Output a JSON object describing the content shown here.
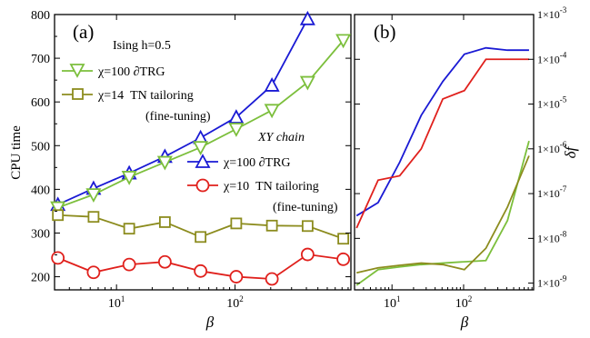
{
  "chart_data": [
    {
      "panel": "(a)",
      "type": "line",
      "xlabel": "β",
      "ylabel": "CPU time",
      "xscale": "log",
      "xlim": [
        3,
        950
      ],
      "ylim": [
        170,
        800
      ],
      "x_ticks": [
        {
          "v": 10,
          "label": "10",
          "sup": "1"
        },
        {
          "v": 100,
          "label": "10",
          "sup": "2"
        },
        {
          "v": 1000,
          "label": "10",
          "sup": "3"
        }
      ],
      "y_ticks": [
        "200",
        "300",
        "400",
        "500",
        "600",
        "700",
        "800"
      ],
      "legend_groups": [
        {
          "title": "Ising h=0.5",
          "entries": [
            "χ=100 ∂TRG",
            "χ=14  TN tailoring",
            "(fine-tuning)"
          ]
        },
        {
          "title": "XY chain",
          "entries": [
            "χ=100 ∂TRG",
            "χ=10  TN tailoring",
            "(fine-tuning)"
          ]
        }
      ],
      "series": [
        {
          "name": "χ=100 ∂TRG (XY chain)",
          "color": "#1a1ad4",
          "marker": "triangle-up",
          "x": [
            3.2,
            6.4,
            12.8,
            25.6,
            51.2,
            102.4,
            204.8,
            409.6,
            819.2
          ],
          "y": [
            365,
            402,
            437,
            475,
            518,
            565,
            638,
            790,
            null
          ]
        },
        {
          "name": "χ=100 ∂TRG (Ising h=0.5)",
          "color": "#7cbf3c",
          "marker": "triangle-down",
          "x": [
            3.2,
            6.4,
            12.8,
            25.6,
            51.2,
            102.4,
            204.8,
            409.6,
            819.2
          ],
          "y": [
            358,
            388,
            428,
            462,
            496,
            538,
            581,
            645,
            741
          ]
        },
        {
          "name": "χ=14 TN tailoring (fine-tuning)",
          "color": "#8c8c1e",
          "marker": "square",
          "x": [
            3.2,
            6.4,
            12.8,
            25.6,
            51.2,
            102.4,
            204.8,
            409.6,
            819.2
          ],
          "y": [
            341,
            337,
            310,
            325,
            291,
            322,
            317,
            316,
            287
          ]
        },
        {
          "name": "χ=10 TN tailoring (fine-tuning)",
          "color": "#e0201c",
          "marker": "circle",
          "x": [
            3.2,
            6.4,
            12.8,
            25.6,
            51.2,
            102.4,
            204.8,
            409.6,
            819.2
          ],
          "y": [
            243,
            210,
            228,
            234,
            213,
            200,
            195,
            251,
            240
          ]
        }
      ]
    },
    {
      "panel": "(b)",
      "type": "line",
      "xlabel": "β",
      "ylabel": "δf",
      "xscale": "log",
      "yscale": "log",
      "xlim": [
        3,
        950
      ],
      "y_ticks": [
        {
          "v": -9,
          "label": "1×10",
          "sup": "-9"
        },
        {
          "v": -8,
          "label": "1×10",
          "sup": "-8"
        },
        {
          "v": -7,
          "label": "1×10",
          "sup": "-7"
        },
        {
          "v": -6,
          "label": "1×10",
          "sup": "-6"
        },
        {
          "v": -5,
          "label": "1×10",
          "sup": "-5"
        },
        {
          "v": -4,
          "label": "1×10",
          "sup": "-4"
        },
        {
          "v": -3,
          "label": "1×10",
          "sup": "-3"
        }
      ],
      "x_ticks": [
        {
          "v": 10,
          "label": "10",
          "sup": "1"
        },
        {
          "v": 100,
          "label": "10",
          "sup": "2"
        },
        {
          "v": 1000,
          "label": "10",
          "sup": "3"
        }
      ],
      "series": [
        {
          "name": "χ=100 ∂TRG (XY chain)",
          "color": "#1a1ad4",
          "marker": "none",
          "x": [
            3.2,
            6.4,
            12.8,
            25.6,
            51.2,
            102.4,
            204.8,
            409.6,
            819.2
          ],
          "y": [
            3.2e-08,
            6.3e-08,
            5e-07,
            5.6e-06,
            3.2e-05,
            0.00013,
            0.00018,
            0.00016,
            0.00016
          ]
        },
        {
          "name": "χ=10 TN tailoring (fine-tuning) (XY chain)",
          "color": "#e0201c",
          "marker": "none",
          "x": [
            3.2,
            6.4,
            12.8,
            25.6,
            51.2,
            102.4,
            204.8,
            409.6,
            819.2
          ],
          "y": [
            1.7e-08,
            2e-07,
            2.5e-07,
            1e-06,
            1.3e-05,
            2e-05,
            0.0001,
            0.0001,
            0.0001
          ]
        },
        {
          "name": "χ=100 ∂TRG (Ising h=0.5)",
          "color": "#7cbf3c",
          "marker": "none",
          "x": [
            3.2,
            6.4,
            12.8,
            25.6,
            51.2,
            102.4,
            204.8,
            409.6,
            819.2
          ],
          "y": [
            9e-10,
            2e-09,
            2.3e-09,
            2.6e-09,
            2.8e-09,
            3e-09,
            3.2e-09,
            2.5e-08,
            1.5e-06
          ]
        },
        {
          "name": "χ=14 TN tailoring (fine-tuning) (Ising h=0.5)",
          "color": "#8c8c1e",
          "marker": "none",
          "x": [
            3.2,
            6.4,
            12.8,
            25.6,
            51.2,
            102.4,
            204.8,
            409.6,
            819.2
          ],
          "y": [
            1.7e-09,
            2.2e-09,
            2.5e-09,
            2.8e-09,
            2.6e-09,
            2e-09,
            6e-09,
            5e-08,
            7e-07
          ]
        }
      ]
    }
  ]
}
